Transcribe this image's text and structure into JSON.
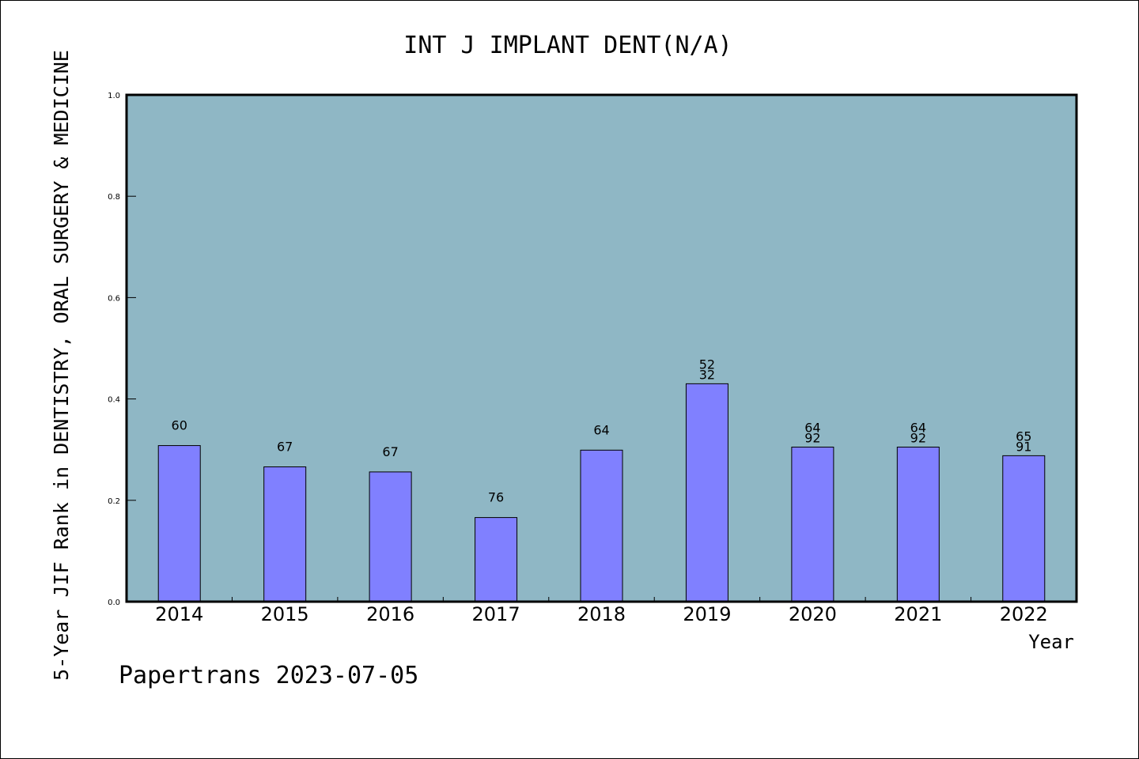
{
  "chart_data": {
    "type": "bar",
    "title": "INT J IMPLANT DENT(N/A)",
    "ylabel": "5-Year JIF Rank in DENTISTRY, ORAL SURGERY & MEDICINE",
    "xlabel": "Year",
    "categories": [
      "2014",
      "2015",
      "2016",
      "2017",
      "2018",
      "2019",
      "2020",
      "2021",
      "2022"
    ],
    "values": [
      0.308,
      0.266,
      0.256,
      0.166,
      0.299,
      0.43,
      0.305,
      0.305,
      0.288
    ],
    "labels": [
      [
        "60"
      ],
      [
        "67"
      ],
      [
        "67"
      ],
      [
        "76"
      ],
      [
        "64"
      ],
      [
        "52",
        "32"
      ],
      [
        "64",
        "92"
      ],
      [
        "64",
        "92"
      ],
      [
        "65",
        "91"
      ]
    ],
    "ylim": [
      0,
      1.0
    ],
    "yticks": [
      "0.0",
      "0.2",
      "0.4",
      "0.6",
      "0.8",
      "1.0"
    ],
    "grid": false,
    "colors": {
      "plot_bg": "#8fb7c5",
      "bar_fill": "#8080ff",
      "bar_stroke": "#000000"
    }
  },
  "footer": "Papertrans 2023-07-05"
}
